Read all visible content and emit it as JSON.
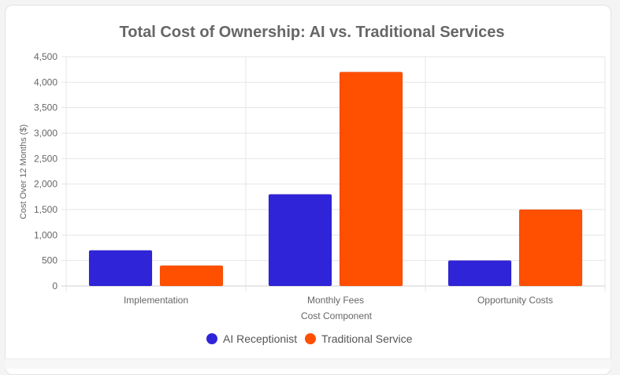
{
  "chart_data": {
    "type": "bar",
    "title": "Total Cost of Ownership: AI vs. Traditional Services",
    "xlabel": "Cost Component",
    "ylabel": "Cost Over 12 Months ($)",
    "categories": [
      "Implementation",
      "Monthly Fees",
      "Opportunity Costs"
    ],
    "series": [
      {
        "name": "AI Receptionist",
        "values": [
          700,
          1800,
          500
        ],
        "color": "#3024d8"
      },
      {
        "name": "Traditional Service",
        "values": [
          400,
          4200,
          1500
        ],
        "color": "#ff4f00"
      }
    ],
    "ylim": [
      0,
      4500
    ],
    "yticks": [
      0,
      500,
      1000,
      1500,
      2000,
      2500,
      3000,
      3500,
      4000,
      4500
    ],
    "ytick_labels": [
      "0",
      "500",
      "1,000",
      "1,500",
      "2,000",
      "2,500",
      "3,000",
      "3,500",
      "4,000",
      "4,500"
    ],
    "grid": true,
    "legend_position": "bottom"
  }
}
